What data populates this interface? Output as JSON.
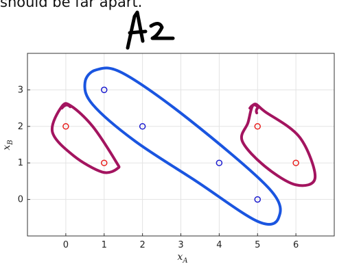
{
  "header_text": "should be far apart.",
  "chart_data": {
    "type": "scatter",
    "title": "A2",
    "xlabel": "x_A",
    "ylabel": "x_B",
    "xlim": [
      -1,
      7
    ],
    "ylim": [
      -1,
      4
    ],
    "xticks": [
      0,
      1,
      2,
      3,
      4,
      5,
      6
    ],
    "yticks": [
      0,
      1,
      2,
      3
    ],
    "grid": true,
    "series": [
      {
        "color": "#e8201e",
        "points": [
          [
            0,
            2
          ],
          [
            1,
            1
          ],
          [
            5,
            2
          ],
          [
            6,
            1
          ]
        ]
      },
      {
        "color": "#1c1ccf",
        "points": [
          [
            1,
            3
          ],
          [
            2,
            2
          ],
          [
            4,
            1
          ],
          [
            5,
            0
          ]
        ]
      }
    ],
    "annotations": [
      {
        "kind": "loop",
        "color": "#a3145f",
        "around": [
          [
            0,
            2
          ],
          [
            1,
            1
          ]
        ]
      },
      {
        "kind": "loop",
        "color": "#1a55e0",
        "around": [
          [
            1,
            3
          ],
          [
            2,
            2
          ],
          [
            4,
            1
          ],
          [
            5,
            0
          ]
        ]
      },
      {
        "kind": "loop",
        "color": "#a3145f",
        "around": [
          [
            5,
            2
          ],
          [
            6,
            1
          ]
        ]
      }
    ]
  }
}
